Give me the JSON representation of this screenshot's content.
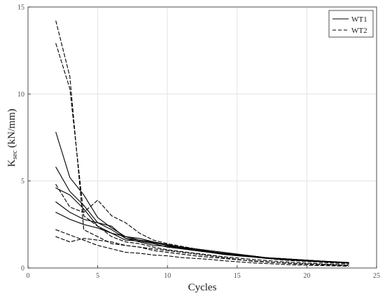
{
  "chart_data": {
    "type": "line",
    "xlabel": "Cycles",
    "ylabel": {
      "main": "K",
      "sub": "sec",
      "unit": " (kN/mm)"
    },
    "xlim": [
      0,
      25
    ],
    "ylim": [
      0,
      15
    ],
    "xticks": [
      0,
      5,
      10,
      15,
      20,
      25
    ],
    "yticks": [
      0,
      5,
      10,
      15
    ],
    "grid": true,
    "legend": {
      "position": "top-right",
      "entries": [
        {
          "label": "WT1",
          "style": "solid"
        },
        {
          "label": "WT2",
          "style": "dashed"
        }
      ]
    },
    "series": [
      {
        "group": "WT1",
        "style": "solid",
        "x": [
          2,
          3,
          4,
          5,
          6,
          7,
          8,
          9,
          10,
          11,
          12,
          13,
          14,
          15,
          16,
          17,
          18,
          19,
          20,
          21,
          22,
          23
        ],
        "y": [
          7.8,
          5.2,
          4.2,
          2.9,
          2.3,
          1.8,
          1.7,
          1.5,
          1.35,
          1.2,
          1.05,
          0.95,
          0.85,
          0.75,
          0.7,
          0.6,
          0.55,
          0.5,
          0.45,
          0.4,
          0.35,
          0.3
        ]
      },
      {
        "group": "WT1",
        "style": "solid",
        "x": [
          2,
          3,
          4,
          5,
          6,
          7,
          8,
          9,
          10,
          11,
          12,
          13,
          14,
          15,
          16,
          17,
          18,
          19,
          20,
          21,
          22,
          23
        ],
        "y": [
          5.8,
          4.4,
          3.6,
          2.6,
          2.2,
          1.7,
          1.6,
          1.45,
          1.3,
          1.15,
          1.0,
          0.9,
          0.8,
          0.72,
          0.66,
          0.58,
          0.52,
          0.47,
          0.42,
          0.38,
          0.34,
          0.3
        ]
      },
      {
        "group": "WT1",
        "style": "solid",
        "x": [
          2,
          3,
          4,
          5,
          6,
          7,
          8,
          9,
          10,
          11,
          12,
          13,
          14,
          15,
          16,
          17,
          18,
          19,
          20,
          21,
          22,
          23
        ],
        "y": [
          4.6,
          4.2,
          3.4,
          2.4,
          2.0,
          1.6,
          1.55,
          1.4,
          1.2,
          1.1,
          1.0,
          0.9,
          0.78,
          0.7,
          0.64,
          0.56,
          0.5,
          0.45,
          0.4,
          0.36,
          0.32,
          0.28
        ]
      },
      {
        "group": "WT1",
        "style": "solid",
        "x": [
          2,
          3,
          4,
          5,
          6,
          7,
          8,
          9,
          10,
          11,
          12,
          13,
          14,
          15,
          16,
          17,
          18,
          19,
          20,
          21,
          22,
          23
        ],
        "y": [
          3.8,
          3.2,
          2.8,
          2.6,
          2.4,
          1.7,
          1.5,
          1.3,
          1.25,
          1.15,
          1.05,
          0.95,
          0.85,
          0.78,
          0.7,
          0.6,
          0.55,
          0.5,
          0.45,
          0.4,
          0.36,
          0.32
        ]
      },
      {
        "group": "WT1",
        "style": "solid",
        "x": [
          2,
          3,
          4,
          5,
          6,
          7,
          8,
          9,
          10,
          11,
          12,
          13,
          14,
          15,
          16,
          17,
          18,
          19,
          20,
          21,
          22,
          23
        ],
        "y": [
          3.2,
          2.8,
          2.5,
          2.3,
          2.0,
          1.8,
          1.6,
          1.5,
          1.3,
          1.2,
          1.1,
          1.0,
          0.9,
          0.8,
          0.7,
          0.6,
          0.55,
          0.5,
          0.45,
          0.4,
          0.35,
          0.3
        ]
      },
      {
        "group": "WT2",
        "style": "dashed",
        "x": [
          2,
          3,
          4,
          5,
          6,
          7,
          8,
          9,
          10,
          11,
          12,
          13,
          14,
          15,
          16,
          17,
          18,
          19,
          20,
          21,
          22,
          23
        ],
        "y": [
          14.2,
          11.0,
          2.2,
          1.8,
          1.4,
          1.3,
          1.2,
          1.1,
          1.0,
          0.9,
          0.8,
          0.7,
          0.6,
          0.5,
          0.4,
          0.35,
          0.3,
          0.25,
          0.22,
          0.2,
          0.18,
          0.15
        ]
      },
      {
        "group": "WT2",
        "style": "dashed",
        "x": [
          2,
          3,
          4,
          5,
          6,
          7,
          8,
          9,
          10,
          11,
          12,
          13,
          14,
          15,
          16,
          17,
          18,
          19,
          20,
          21,
          22,
          23
        ],
        "y": [
          12.9,
          10.3,
          3.0,
          2.4,
          1.8,
          1.5,
          1.4,
          1.2,
          1.05,
          0.95,
          0.85,
          0.75,
          0.65,
          0.58,
          0.5,
          0.44,
          0.38,
          0.32,
          0.28,
          0.24,
          0.2,
          0.18
        ]
      },
      {
        "group": "WT2",
        "style": "dashed",
        "x": [
          2,
          3,
          4,
          5,
          6,
          7,
          8,
          9,
          10,
          11,
          12,
          13,
          14,
          15,
          16,
          17,
          18,
          19,
          20,
          21,
          22,
          23
        ],
        "y": [
          4.8,
          3.5,
          3.2,
          3.9,
          3.0,
          2.6,
          2.0,
          1.6,
          1.4,
          1.25,
          1.1,
          0.95,
          0.82,
          0.72,
          0.64,
          0.56,
          0.48,
          0.42,
          0.38,
          0.33,
          0.28,
          0.25
        ]
      },
      {
        "group": "WT2",
        "style": "dashed",
        "x": [
          2,
          3,
          4,
          5,
          6,
          7,
          8,
          9,
          10,
          11,
          12,
          13,
          14,
          15,
          16,
          17,
          18,
          19,
          20,
          21,
          22,
          23
        ],
        "y": [
          2.2,
          1.9,
          1.6,
          1.3,
          1.1,
          0.9,
          0.85,
          0.75,
          0.7,
          0.6,
          0.55,
          0.5,
          0.42,
          0.36,
          0.3,
          0.26,
          0.22,
          0.18,
          0.16,
          0.14,
          0.12,
          0.1
        ]
      },
      {
        "group": "WT2",
        "style": "dashed",
        "x": [
          2,
          3,
          4,
          5,
          6,
          7,
          8,
          9,
          10,
          11,
          12,
          13,
          14,
          15,
          16,
          17,
          18,
          19,
          20,
          21,
          22,
          23
        ],
        "y": [
          1.8,
          1.5,
          1.7,
          1.6,
          1.5,
          1.3,
          1.2,
          1.0,
          0.9,
          0.8,
          0.7,
          0.62,
          0.55,
          0.48,
          0.42,
          0.36,
          0.3,
          0.26,
          0.22,
          0.19,
          0.16,
          0.14
        ]
      }
    ]
  }
}
